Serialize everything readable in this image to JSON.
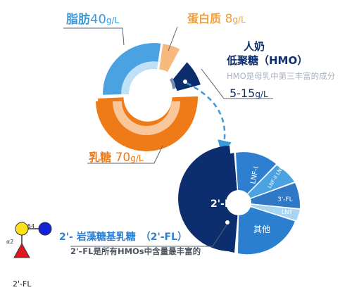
{
  "milk_composition": {
    "fat": {
      "name": "脂肪",
      "amount": "40",
      "unit": "g/L"
    },
    "protein": {
      "name": "蛋白质",
      "amount": "8",
      "unit": "g/L"
    },
    "lactose": {
      "name": "乳糖",
      "amount": "70",
      "unit": "g/L"
    },
    "hmo": {
      "title_line1": "人奶",
      "title_line2": "低聚糖（HMO）",
      "description": "HMO是母乳中第三丰富的成分",
      "amount": "5-15",
      "unit": "g/L"
    }
  },
  "hmo_breakdown": {
    "segments": [
      {
        "label": "2'-FL"
      },
      {
        "label": "LNF-I"
      },
      {
        "label": "LNF-II LNF-III"
      },
      {
        "label": "3'-FL"
      },
      {
        "label": "LNT"
      },
      {
        "label": "其他"
      }
    ]
  },
  "highlight": {
    "title": "2'- 岩藻糖基乳糖　（2'-FL）",
    "description": "2'–FL是所有HMOs中含量最丰富的"
  },
  "molecule": {
    "label": "2'-FL",
    "bond_alpha": "α2",
    "bond_beta": "β4"
  },
  "colors": {
    "fat": "#4aa3e0",
    "fat_light": "#bfe0f6",
    "lactose": "#ee7b17",
    "lactose_light": "#f9c79a",
    "protein": "#f6b97e",
    "hmo_dark": "#0d2e6e",
    "hmo_blue": "#2e7fd0"
  }
}
